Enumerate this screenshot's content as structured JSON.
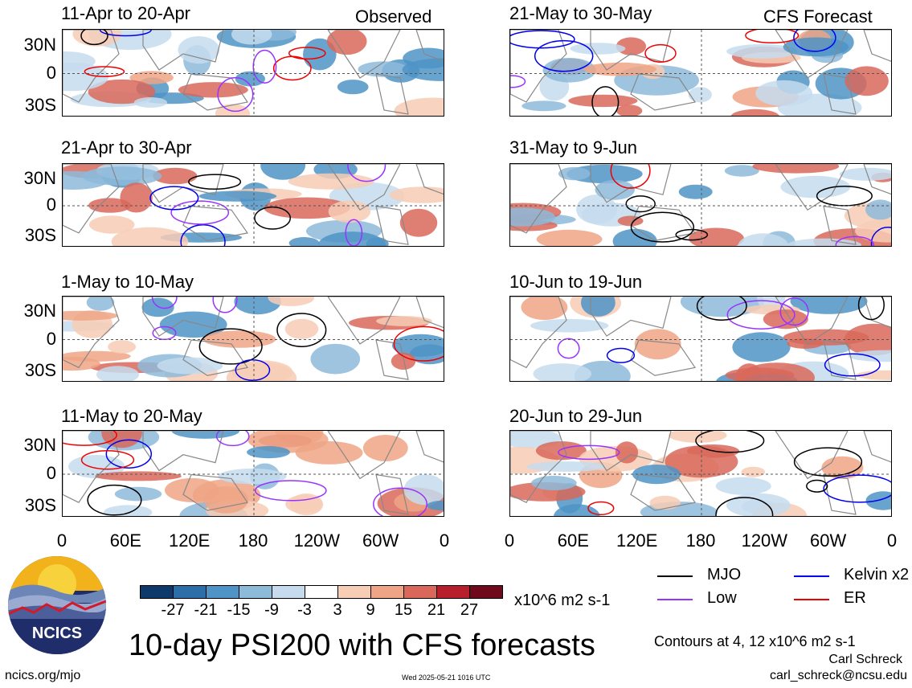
{
  "header": {
    "observed_label": "Observed",
    "forecast_label": "CFS Forecast"
  },
  "axes": {
    "y_ticks": [
      "30N",
      "0",
      "30S"
    ],
    "x_ticks": [
      "0",
      "60E",
      "120E",
      "180",
      "120W",
      "60W",
      "0"
    ]
  },
  "panels": [
    {
      "period": "11-Apr to 20-Apr",
      "column": "observed"
    },
    {
      "period": "21-Apr to 30-Apr",
      "column": "observed"
    },
    {
      "period": "1-May to 10-May",
      "column": "observed"
    },
    {
      "period": "11-May to 20-May",
      "column": "observed"
    },
    {
      "period": "21-May to 30-May",
      "column": "forecast"
    },
    {
      "period": "31-May to 9-Jun",
      "column": "forecast"
    },
    {
      "period": "10-Jun to 19-Jun",
      "column": "forecast"
    },
    {
      "period": "20-Jun to 29-Jun",
      "column": "forecast"
    }
  ],
  "colorbar": {
    "colors": [
      "#0d3a6a",
      "#2c6ea8",
      "#4f94c6",
      "#8dbad9",
      "#c6dcee",
      "#ffffff",
      "#f7cdb5",
      "#eea585",
      "#d9685a",
      "#b81f2c",
      "#6e0a1c"
    ],
    "labels": [
      "-27",
      "-21",
      "-15",
      "-9",
      "-3",
      "3",
      "9",
      "15",
      "21",
      "27"
    ],
    "units": "x10^6 m2 s-1"
  },
  "legend": {
    "items": [
      {
        "label": "MJO",
        "color": "#000000"
      },
      {
        "label": "Kelvin x2",
        "color": "#0000ee"
      },
      {
        "label": "Low",
        "color": "#9933ff"
      },
      {
        "label": "ER",
        "color": "#ee0000"
      }
    ],
    "contour_note": "Contours at 4, 12 x10^6 m2 s-1"
  },
  "footer": {
    "main_title": "10-day PSI200 with CFS forecasts",
    "site": "ncics.org/mjo",
    "timestamp": "Wed 2025-05-21 1016 UTC",
    "author": "Carl Schreck",
    "email": "carl_schreck@ncsu.edu",
    "logo_text": "NCICS"
  },
  "chart_data": {
    "type": "heatmap",
    "title": "10-day PSI200 with CFS forecasts",
    "variable": "PSI200 anomaly",
    "units": "x10^6 m2 s-1",
    "x_ticks": [
      "0",
      "60E",
      "120E",
      "180",
      "120W",
      "60W",
      "0"
    ],
    "y_ticks": [
      "30N",
      "0",
      "30S"
    ],
    "xlim": [
      0,
      360
    ],
    "ylim": [
      -40,
      40
    ],
    "levels": [
      -27,
      -21,
      -15,
      -9,
      -3,
      3,
      9,
      15,
      21,
      27
    ],
    "contour_levels": [
      4,
      12
    ],
    "series": [
      {
        "name": "MJO",
        "color": "#000000"
      },
      {
        "name": "Kelvin x2",
        "color": "#0000ee"
      },
      {
        "name": "Low",
        "color": "#9933ff"
      },
      {
        "name": "ER",
        "color": "#ee0000"
      }
    ]
  }
}
